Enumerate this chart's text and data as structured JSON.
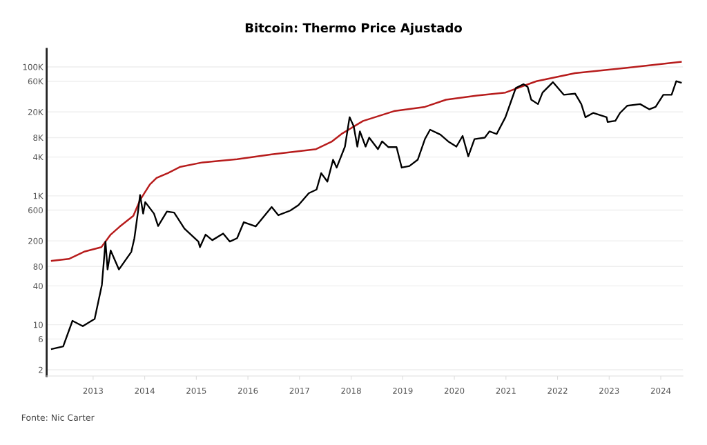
{
  "chart_data": {
    "type": "line",
    "title": "Bitcoin: Thermo Price Ajustado",
    "log": "y",
    "grid": "y",
    "line_style": "solid",
    "marker": "none",
    "xlim": [
      2012.1,
      2024.43
    ],
    "ylim": [
      1.6,
      190000
    ],
    "xticks": [
      2013,
      2014,
      2015,
      2016,
      2017,
      2018,
      2019,
      2020,
      2021,
      2022,
      2023,
      2024
    ],
    "yticks": [
      2,
      6,
      10,
      40,
      80,
      200,
      600,
      {
        "value": 1000,
        "label": "1K"
      },
      {
        "value": 4000,
        "label": "4K"
      },
      {
        "value": 8000,
        "label": "8K"
      },
      {
        "value": 20000,
        "label": "20K"
      },
      {
        "value": 60000,
        "label": "60K"
      },
      {
        "value": 100000,
        "label": "100K"
      }
    ],
    "annotations": [
      "Fonte: Nic Carter"
    ],
    "series": [
      {
        "color": "#b71c1c",
        "x": [
          2012.2,
          2012.53,
          2012.84,
          2013.16,
          2013.34,
          2013.51,
          2013.78,
          2013.91,
          2014.1,
          2014.23,
          2014.45,
          2014.68,
          2015.12,
          2015.79,
          2016.46,
          2017.32,
          2017.62,
          2017.83,
          2018.23,
          2018.83,
          2019.43,
          2019.84,
          2020.44,
          2020.99,
          2021.59,
          2022.34,
          2023.35,
          2024.39
        ],
        "values": [
          98,
          105,
          137,
          160,
          250,
          330,
          490,
          860,
          1500,
          1900,
          2250,
          2800,
          3300,
          3700,
          4400,
          5300,
          6900,
          9300,
          14500,
          20600,
          24000,
          31000,
          36000,
          40000,
          60000,
          80000,
          97000,
          120000
        ]
      },
      {
        "color": "#000000",
        "x": [
          2012.2,
          2012.42,
          2012.6,
          2012.8,
          2013.03,
          2013.17,
          2013.24,
          2013.28,
          2013.34,
          2013.5,
          2013.74,
          2013.8,
          2013.87,
          2013.91,
          2013.97,
          2014.01,
          2014.18,
          2014.26,
          2014.43,
          2014.57,
          2014.77,
          2015.04,
          2015.07,
          2015.18,
          2015.31,
          2015.52,
          2015.65,
          2015.79,
          2015.92,
          2016.15,
          2016.46,
          2016.59,
          2016.82,
          2016.98,
          2017.18,
          2017.33,
          2017.42,
          2017.54,
          2017.65,
          2017.72,
          2017.88,
          2017.97,
          2018.05,
          2018.12,
          2018.17,
          2018.28,
          2018.35,
          2018.52,
          2018.6,
          2018.72,
          2018.88,
          2018.98,
          2019.13,
          2019.29,
          2019.43,
          2019.53,
          2019.73,
          2019.88,
          2020.04,
          2020.16,
          2020.27,
          2020.39,
          2020.59,
          2020.68,
          2020.82,
          2020.99,
          2021.11,
          2021.19,
          2021.34,
          2021.42,
          2021.49,
          2021.62,
          2021.71,
          2021.91,
          2022.12,
          2022.34,
          2022.46,
          2022.54,
          2022.69,
          2022.95,
          2022.97,
          2023.12,
          2023.21,
          2023.35,
          2023.6,
          2023.78,
          2023.9,
          2024.05,
          2024.21,
          2024.3,
          2024.39
        ],
        "values": [
          4.2,
          4.6,
          11.5,
          9.5,
          12.3,
          41.5,
          195,
          72,
          142,
          72,
          135,
          220,
          566,
          1030,
          530,
          800,
          530,
          340,
          570,
          550,
          310,
          195,
          160,
          250,
          205,
          260,
          195,
          220,
          390,
          335,
          670,
          500,
          590,
          720,
          1100,
          1250,
          2250,
          1660,
          3630,
          2740,
          5800,
          16600,
          12000,
          5800,
          10000,
          5800,
          8000,
          5300,
          7000,
          5700,
          5700,
          2740,
          2900,
          3630,
          7600,
          10600,
          8900,
          7000,
          5800,
          8500,
          4100,
          7600,
          8000,
          10000,
          9100,
          16600,
          31000,
          47000,
          54000,
          49000,
          31000,
          26500,
          40000,
          58000,
          37000,
          38500,
          26500,
          16600,
          19300,
          16600,
          14000,
          14600,
          19300,
          25000,
          26500,
          22000,
          24000,
          37000,
          37000,
          60000,
          57000
        ]
      }
    ]
  }
}
